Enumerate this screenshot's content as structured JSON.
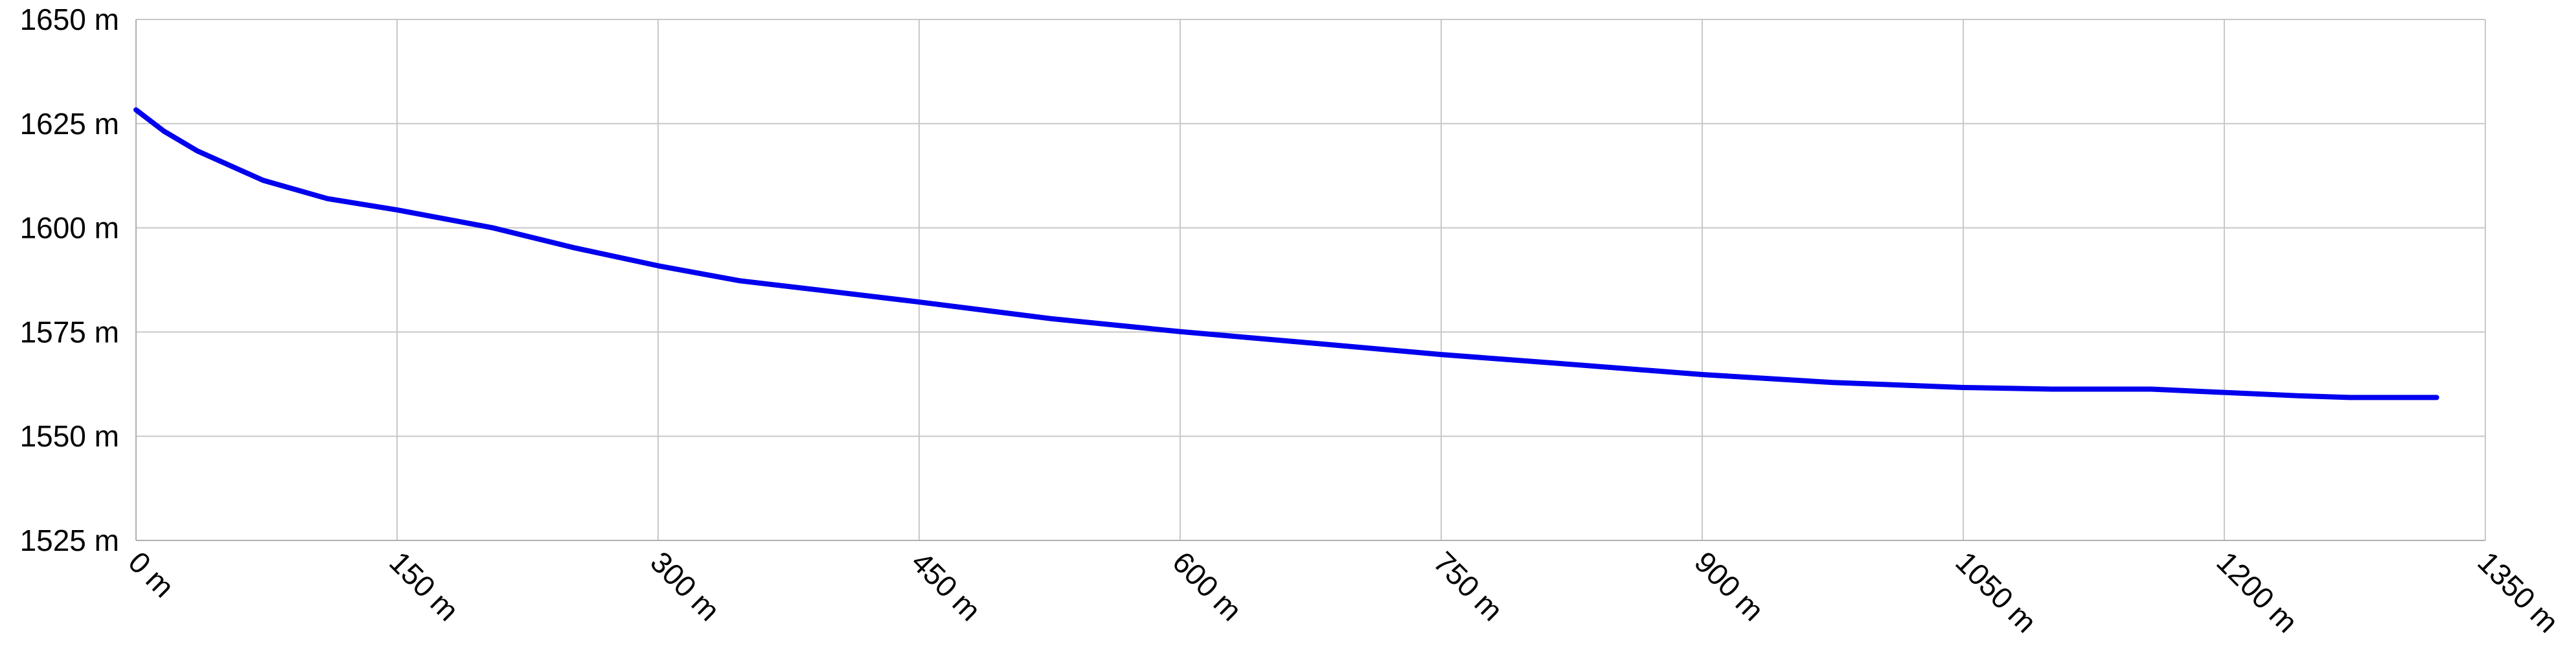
{
  "chart_data": {
    "type": "line",
    "x": [
      0,
      16,
      35,
      73,
      110,
      150,
      205,
      252,
      300,
      347,
      394,
      450,
      526,
      600,
      677,
      750,
      826,
      900,
      975,
      1050,
      1101,
      1158,
      1200,
      1243,
      1272,
      1322
    ],
    "series": [
      {
        "color": "#0000ee",
        "values": [
          1628.3,
          1623.2,
          1618.5,
          1611.4,
          1607,
          1604.3,
          1600,
          1595.2,
          1590.9,
          1587.3,
          1585,
          1582.2,
          1578.2,
          1575.1,
          1572.3,
          1569.6,
          1567.2,
          1564.8,
          1562.9,
          1561.7,
          1561.3,
          1561.3,
          1560.5,
          1559.7,
          1559.3,
          1559.3
        ]
      }
    ],
    "xlim": [
      0,
      1350
    ],
    "xticks": [
      {
        "value": 0,
        "label": "0 m"
      },
      {
        "value": 150,
        "label": "150 m"
      },
      {
        "value": 300,
        "label": "300 m"
      },
      {
        "value": 450,
        "label": "450 m"
      },
      {
        "value": 600,
        "label": "600 m"
      },
      {
        "value": 750,
        "label": "750 m"
      },
      {
        "value": 900,
        "label": "900 m"
      },
      {
        "value": 1050,
        "label": "1050 m"
      },
      {
        "value": 1200,
        "label": "1200 m"
      },
      {
        "value": 1350,
        "label": "1350 m"
      }
    ],
    "ylim": [
      1525,
      1650
    ],
    "yticks": [
      {
        "value": 1525,
        "label": "1525 m"
      },
      {
        "value": 1550,
        "label": "1550 m"
      },
      {
        "value": 1575,
        "label": "1575 m"
      },
      {
        "value": 1600,
        "label": "1600 m"
      },
      {
        "value": 1625,
        "label": "1625 m"
      },
      {
        "value": 1650,
        "label": "1650 m"
      }
    ],
    "grid": true
  }
}
